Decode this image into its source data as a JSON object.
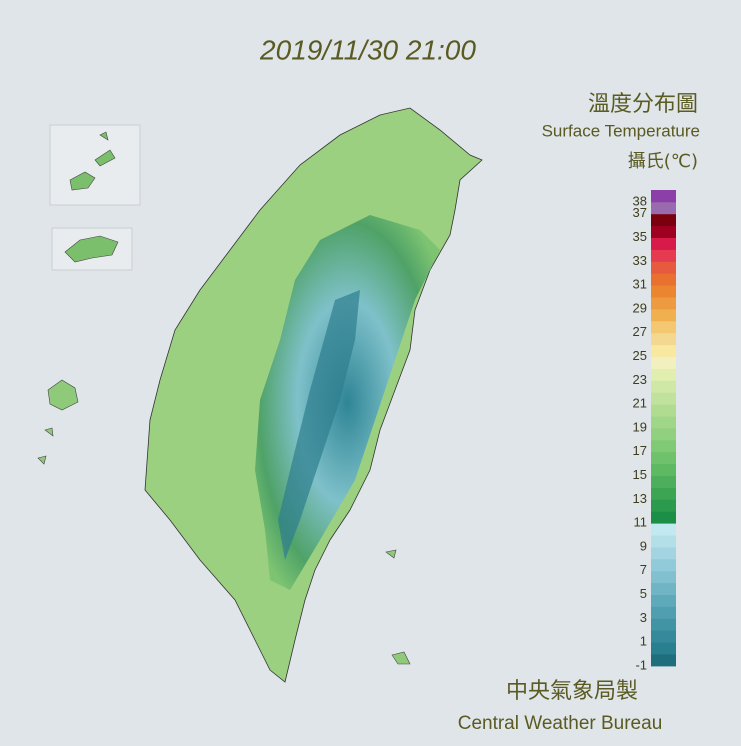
{
  "header": {
    "timestamp": "2019/11/30 21:00"
  },
  "legend": {
    "title_zh": "溫度分布圖",
    "title_en": "Surface Temperature",
    "unit": "攝氏(℃)",
    "range": [
      -1,
      39
    ],
    "ticks": [
      38,
      37,
      35,
      33,
      31,
      29,
      27,
      25,
      23,
      21,
      19,
      17,
      15,
      13,
      11,
      9,
      7,
      5,
      3,
      1,
      -1
    ],
    "colors": [
      "#1f6e7d",
      "#2a7f8e",
      "#35899a",
      "#4194a4",
      "#4f9fb0",
      "#5eaabb",
      "#6fb5c5",
      "#80c0cf",
      "#91cad8",
      "#a2d5e1",
      "#b3dfe9",
      "#c3e9f0",
      "#1a8f45",
      "#2b9a4c",
      "#3ca553",
      "#4daf5b",
      "#5eb963",
      "#6fc16c",
      "#80c975",
      "#90d07e",
      "#a0d688",
      "#b0dc92",
      "#c0e29c",
      "#d0e8a6",
      "#e0eeb0",
      "#f3f0c0",
      "#f8e8a0",
      "#f5d890",
      "#f3c870",
      "#f0b050",
      "#ee9a40",
      "#ec8530",
      "#ea7030",
      "#e85a40",
      "#e63a50",
      "#d81a4a",
      "#a00020",
      "#7a0010",
      "#9a6aaf",
      "#8a40a8"
    ]
  },
  "footer": {
    "agency_zh": "中央氣象局製",
    "agency_en": "Central Weather Bureau"
  }
}
